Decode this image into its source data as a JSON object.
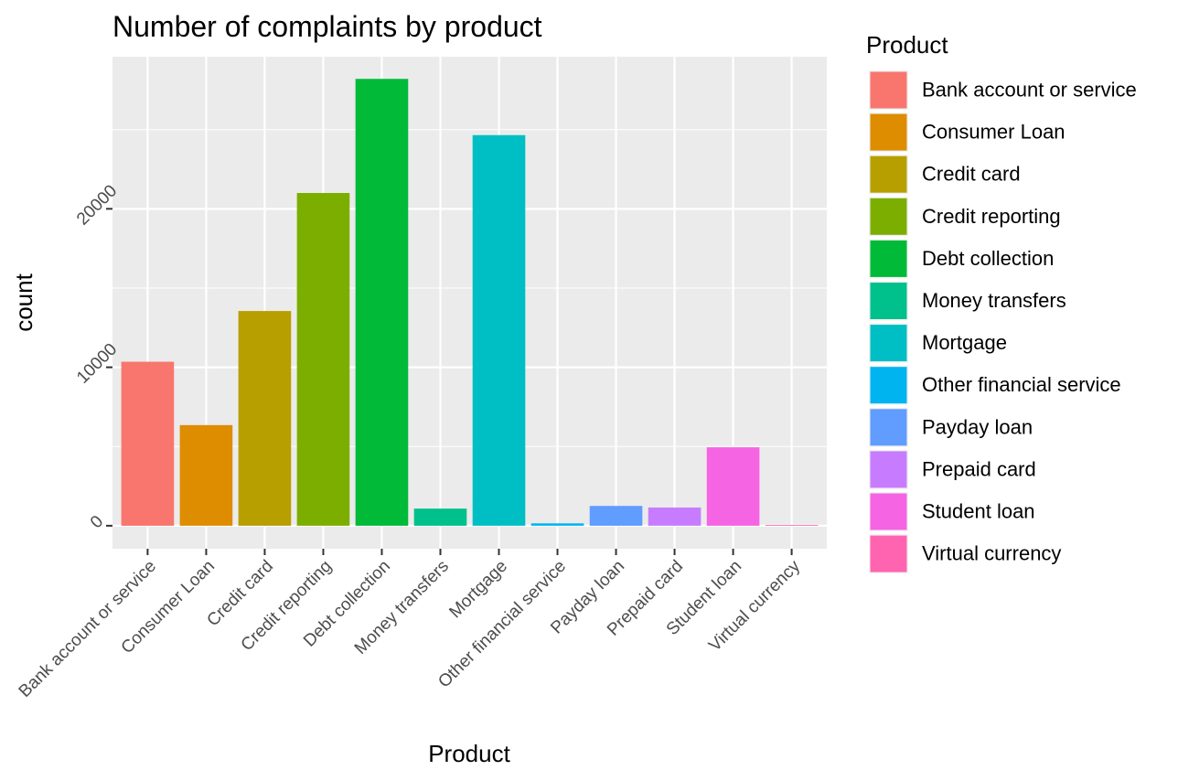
{
  "chart_data": {
    "type": "bar",
    "title": "Number of complaints by product",
    "xlabel": "Product",
    "ylabel": "count",
    "categories": [
      "Bank account or service",
      "Consumer Loan",
      "Credit card",
      "Credit reporting",
      "Debt collection",
      "Money transfers",
      "Mortgage",
      "Other financial service",
      "Payday loan",
      "Prepaid card",
      "Student loan",
      "Virtual currency"
    ],
    "values": [
      10350,
      6350,
      13550,
      21000,
      28200,
      1080,
      24650,
      150,
      1250,
      1150,
      4950,
      20
    ],
    "colors": [
      "#F8766D",
      "#DE8C00",
      "#B79F00",
      "#7CAE00",
      "#00BA38",
      "#00C08B",
      "#00BFC4",
      "#00B4F0",
      "#619CFF",
      "#C77CFF",
      "#F564E3",
      "#FF64B0"
    ],
    "ylim": [
      -1450,
      29600
    ],
    "yticks": [
      0,
      10000,
      20000
    ],
    "ytick_labels": [
      "0",
      "10000",
      "20000"
    ],
    "grid": true,
    "legend": {
      "title": "Product",
      "placement": "right"
    },
    "panel_background": "#EBEBEB"
  }
}
